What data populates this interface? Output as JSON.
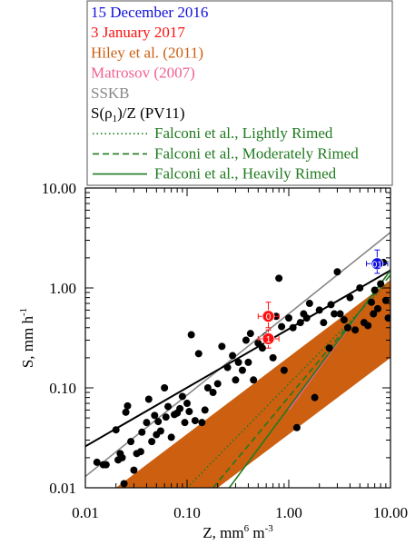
{
  "chart_data": {
    "type": "scatter",
    "xscale": "log",
    "yscale": "log",
    "xlim": [
      0.01,
      10.0
    ],
    "ylim": [
      0.01,
      10.0
    ],
    "xticks": [
      "0.01",
      "0.10",
      "1.00",
      "10.00"
    ],
    "yticks": [
      "0.01",
      "0.10",
      "1.00",
      "10.00"
    ],
    "xlabel": "Z, mm",
    "xlabel_sup": "6",
    "xlabel_tail": " m",
    "xlabel_sup2": "-3",
    "ylabel": "S, mm h",
    "ylabel_sup": "-1",
    "legend": {
      "placement": "top",
      "entries": [
        {
          "label": "15 December 2016",
          "color": "#1010dd",
          "style": "text"
        },
        {
          "label": " 3 January 2017",
          "color": "#ff1010",
          "style": "text"
        },
        {
          "label": "Hiley et al. (2011)",
          "color": "#cc5f10",
          "style": "text"
        },
        {
          "label": "Matrosov (2007)",
          "color": "#f06090",
          "style": "text"
        },
        {
          "label": "SSKB",
          "color": "#888888",
          "style": "text"
        },
        {
          "label": "S(ρ",
          "sub": "1",
          "tail": ")/Z (PV11)",
          "color": "#000000",
          "style": "text"
        },
        {
          "label": "Falconi et al., Lightly Rimed",
          "color": "#1f7a1f",
          "style": "dotted"
        },
        {
          "label": "Falconi et al., Moderately Rimed",
          "color": "#1f7a1f",
          "style": "dashed"
        },
        {
          "label": "Falconi et al., Heavily Rimed",
          "color": "#1f7a1f",
          "style": "solid"
        }
      ]
    },
    "colors": {
      "hiley_fill": "#cc5f10",
      "matrosov": "#f06090",
      "sskb": "#888888",
      "pv11": "#000000",
      "falconi": "#1f7a1f",
      "dec15": "#1010dd",
      "jan3": "#ff1010",
      "points": "#000000"
    },
    "hiley_band": {
      "upper": [
        [
          0.02,
          0.01
        ],
        [
          10.0,
          1.2
        ]
      ],
      "lower": [
        [
          0.2,
          0.01
        ],
        [
          10.0,
          0.2
        ]
      ]
    },
    "lines": [
      {
        "name": "SSKB",
        "color": "#888888",
        "style": "solid",
        "points": [
          [
            0.01,
            0.013
          ],
          [
            10.0,
            3.6
          ]
        ]
      },
      {
        "name": "PV11",
        "color": "#000000",
        "style": "solid",
        "points": [
          [
            0.01,
            0.026
          ],
          [
            10.0,
            1.5
          ]
        ]
      },
      {
        "name": "Matrosov",
        "color": "#f06090",
        "style": "solid",
        "points": [
          [
            1.0,
            0.06
          ],
          [
            9.0,
            1.3
          ]
        ]
      },
      {
        "name": "Falconi Lightly Rimed",
        "color": "#1f7a1f",
        "style": "dotted",
        "points": [
          [
            0.1,
            0.01
          ],
          [
            10.0,
            1.2
          ]
        ]
      },
      {
        "name": "Falconi Moderately Rimed",
        "color": "#1f7a1f",
        "style": "dashed",
        "points": [
          [
            0.18,
            0.01
          ],
          [
            10.0,
            1.35
          ]
        ]
      },
      {
        "name": "Falconi Heavily Rimed",
        "color": "#1f7a1f",
        "style": "solid",
        "points": [
          [
            0.26,
            0.01
          ],
          [
            10.0,
            1.5
          ]
        ]
      }
    ],
    "points": [
      [
        0.013,
        0.018
      ],
      [
        0.015,
        0.017
      ],
      [
        0.016,
        0.017
      ],
      [
        0.02,
        0.038
      ],
      [
        0.021,
        0.019
      ],
      [
        0.022,
        0.022
      ],
      [
        0.023,
        0.02
      ],
      [
        0.024,
        0.011
      ],
      [
        0.025,
        0.057
      ],
      [
        0.026,
        0.066
      ],
      [
        0.028,
        0.029
      ],
      [
        0.03,
        0.015
      ],
      [
        0.032,
        0.022
      ],
      [
        0.035,
        0.023
      ],
      [
        0.036,
        0.036
      ],
      [
        0.04,
        0.045
      ],
      [
        0.042,
        0.077
      ],
      [
        0.045,
        0.029
      ],
      [
        0.048,
        0.053
      ],
      [
        0.05,
        0.034
      ],
      [
        0.052,
        0.046
      ],
      [
        0.055,
        0.037
      ],
      [
        0.06,
        0.1
      ],
      [
        0.062,
        0.051
      ],
      [
        0.065,
        0.065
      ],
      [
        0.07,
        0.032
      ],
      [
        0.075,
        0.054
      ],
      [
        0.08,
        0.056
      ],
      [
        0.085,
        0.062
      ],
      [
        0.09,
        0.082
      ],
      [
        0.095,
        0.045
      ],
      [
        0.1,
        0.07
      ],
      [
        0.105,
        0.058
      ],
      [
        0.11,
        0.34
      ],
      [
        0.12,
        0.047
      ],
      [
        0.13,
        0.22
      ],
      [
        0.14,
        0.045
      ],
      [
        0.15,
        0.06
      ],
      [
        0.16,
        0.1
      ],
      [
        0.18,
        0.09
      ],
      [
        0.2,
        0.11
      ],
      [
        0.22,
        0.26
      ],
      [
        0.25,
        0.16
      ],
      [
        0.28,
        0.21
      ],
      [
        0.3,
        0.12
      ],
      [
        0.32,
        0.18
      ],
      [
        0.35,
        0.15
      ],
      [
        0.38,
        0.3
      ],
      [
        0.4,
        0.18
      ],
      [
        0.42,
        0.35
      ],
      [
        0.45,
        0.12
      ],
      [
        0.5,
        0.28
      ],
      [
        0.55,
        0.25
      ],
      [
        0.6,
        0.33
      ],
      [
        0.65,
        0.3
      ],
      [
        0.7,
        0.2
      ],
      [
        0.75,
        0.52
      ],
      [
        0.8,
        1.25
      ],
      [
        0.85,
        0.41
      ],
      [
        0.9,
        0.15
      ],
      [
        1.0,
        0.5
      ],
      [
        1.1,
        0.4
      ],
      [
        1.2,
        0.04
      ],
      [
        1.4,
        0.55
      ],
      [
        1.5,
        0.5
      ],
      [
        1.6,
        0.7
      ],
      [
        1.8,
        0.08
      ],
      [
        2.0,
        0.6
      ],
      [
        2.2,
        0.45
      ],
      [
        2.5,
        0.25
      ],
      [
        2.8,
        0.55
      ],
      [
        3.0,
        1.45
      ],
      [
        3.2,
        0.55
      ],
      [
        3.5,
        0.48
      ],
      [
        4.0,
        0.8
      ],
      [
        4.5,
        0.38
      ],
      [
        5.0,
        1.0
      ],
      [
        5.5,
        0.45
      ],
      [
        6.0,
        0.42
      ],
      [
        6.5,
        0.72
      ],
      [
        7.0,
        0.95
      ],
      [
        7.5,
        0.62
      ],
      [
        8.0,
        1.1
      ],
      [
        8.5,
        1.8
      ],
      [
        9.0,
        0.75
      ],
      [
        9.5,
        0.5
      ],
      [
        3.8,
        0.4
      ],
      [
        2.6,
        0.68
      ],
      [
        1.3,
        0.45
      ],
      [
        6.8,
        0.55
      ]
    ],
    "cases": [
      {
        "name": "15 December 2016",
        "label": "01",
        "color": "#1010dd",
        "x": 7.4,
        "y": 1.75,
        "xerr": [
          5.8,
          9.4
        ],
        "yerr": [
          1.4,
          2.4
        ]
      },
      {
        "name": "3 January 2017",
        "label": "1",
        "color": "#ff1010",
        "x": 0.63,
        "y": 0.31,
        "xerr": [
          0.5,
          0.8
        ],
        "yerr": [
          0.25,
          0.38
        ]
      },
      {
        "name": "3 January 2017",
        "label": "0",
        "color": "#ff1010",
        "x": 0.63,
        "y": 0.52,
        "xerr": [
          0.5,
          0.8
        ],
        "yerr": [
          0.4,
          0.72
        ]
      }
    ]
  }
}
